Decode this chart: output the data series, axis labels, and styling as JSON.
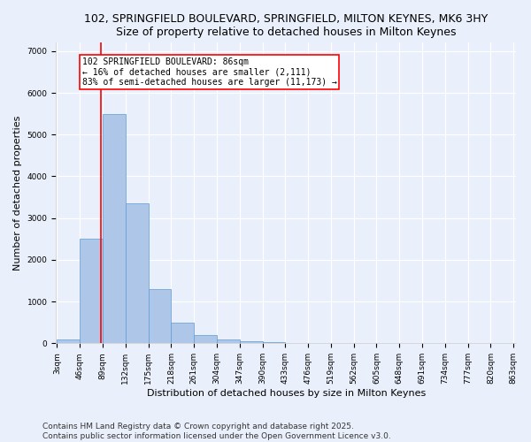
{
  "title_line1": "102, SPRINGFIELD BOULEVARD, SPRINGFIELD, MILTON KEYNES, MK6 3HY",
  "title_line2": "Size of property relative to detached houses in Milton Keynes",
  "xlabel": "Distribution of detached houses by size in Milton Keynes",
  "ylabel": "Number of detached properties",
  "bin_edges": [
    3,
    46,
    89,
    132,
    175,
    218,
    261,
    304,
    347,
    390,
    433,
    476,
    519,
    562,
    605,
    648,
    691,
    734,
    777,
    820,
    863
  ],
  "bar_heights": [
    100,
    2500,
    5500,
    3350,
    1300,
    500,
    200,
    100,
    50,
    20,
    10,
    5,
    3,
    2,
    1,
    1,
    1,
    0,
    0,
    0
  ],
  "bar_color": "#aec6e8",
  "bar_edgecolor": "#5b9bd5",
  "property_size": 86,
  "vline_color": "red",
  "annotation_text": "102 SPRINGFIELD BOULEVARD: 86sqm\n← 16% of detached houses are smaller (2,111)\n83% of semi-detached houses are larger (11,173) →",
  "annotation_box_color": "white",
  "annotation_box_edgecolor": "red",
  "ylim": [
    0,
    7200
  ],
  "yticks": [
    0,
    1000,
    2000,
    3000,
    4000,
    5000,
    6000,
    7000
  ],
  "footer_text": "Contains HM Land Registry data © Crown copyright and database right 2025.\nContains public sector information licensed under the Open Government Licence v3.0.",
  "background_color": "#eaf0fb",
  "grid_color": "white",
  "title_fontsize": 9,
  "label_fontsize": 8,
  "tick_fontsize": 6.5,
  "footer_fontsize": 6.5,
  "annotation_fontsize": 7
}
